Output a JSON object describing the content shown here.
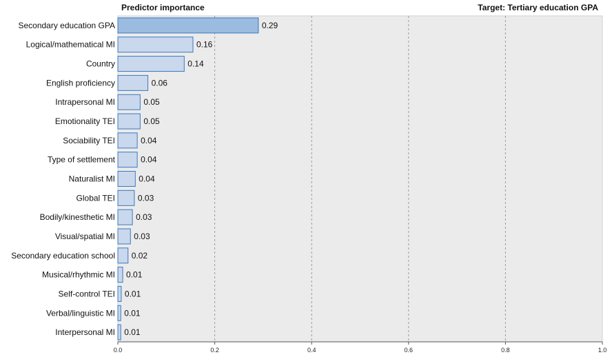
{
  "header": {
    "left": "Predictor importance",
    "right": "Target: Tertiary education GPA"
  },
  "colors": {
    "plot_bg": "#ebebeb",
    "bar_fill_top": "#9bbbe0",
    "bar_fill": "#c9d8ec",
    "bar_stroke": "#3a78c0",
    "grid": "#9a9a9a"
  },
  "chart_data": {
    "type": "bar",
    "orientation": "horizontal",
    "categories": [
      "Secondary education GPA",
      "Logical/mathematical MI",
      "Country",
      "English proficiency",
      "Intrapersonal MI",
      "Emotionality TEI",
      "Sociability TEI",
      "Type of settlement",
      "Naturalist MI",
      "Global TEI",
      "Bodily/kinesthetic MI",
      "Visual/spatial MI",
      "Secondary education school",
      "Musical/rhythmic MI",
      "Self-control TEI",
      "Verbal/linguistic MI",
      "Interpersonal MI"
    ],
    "values": [
      0.29,
      0.155,
      0.137,
      0.062,
      0.046,
      0.046,
      0.04,
      0.04,
      0.036,
      0.034,
      0.03,
      0.026,
      0.021,
      0.01,
      0.007,
      0.006,
      0.006
    ],
    "value_labels": [
      "0.29",
      "0.16",
      "0.14",
      "0.06",
      "0.05",
      "0.05",
      "0.04",
      "0.04",
      "0.04",
      "0.03",
      "0.03",
      "0.03",
      "0.02",
      "0.01",
      "0.01",
      "0.01",
      "0.01"
    ],
    "xlim": [
      0,
      1.0
    ],
    "xticks": [
      0.0,
      0.2,
      0.4,
      0.6,
      0.8,
      1.0
    ],
    "xtick_labels": [
      "0.0",
      "0.2",
      "0.4",
      "0.6",
      "0.8",
      "1.0"
    ],
    "grid": "vertical dashed"
  }
}
